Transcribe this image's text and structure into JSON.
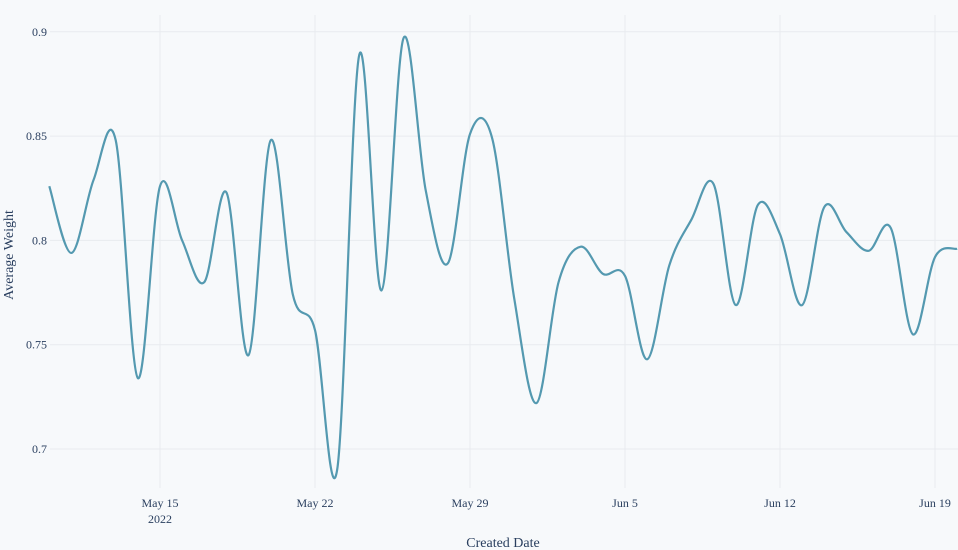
{
  "chart_data": {
    "type": "line",
    "title": "",
    "xlabel": "Created Date",
    "ylabel": "Average Weight",
    "ylim": [
      0.68,
      0.905
    ],
    "grid": true,
    "legend": "none",
    "line_color": "#5499b0",
    "background": "#f7f9fb",
    "x_ticks": [
      {
        "label": "May 15",
        "sub": "2022",
        "date": "2022-05-15"
      },
      {
        "label": "May 22",
        "date": "2022-05-22"
      },
      {
        "label": "May 29",
        "date": "2022-05-29"
      },
      {
        "label": "Jun 5",
        "date": "2022-06-05"
      },
      {
        "label": "Jun 12",
        "date": "2022-06-12"
      },
      {
        "label": "Jun 19",
        "date": "2022-06-19"
      }
    ],
    "y_ticks": [
      "0.7",
      "0.75",
      "0.8",
      "0.85",
      "0.9"
    ],
    "x": [
      "2022-05-10",
      "2022-05-11",
      "2022-05-12",
      "2022-05-13",
      "2022-05-14",
      "2022-05-15",
      "2022-05-16",
      "2022-05-17",
      "2022-05-18",
      "2022-05-19",
      "2022-05-20",
      "2022-05-21",
      "2022-05-22",
      "2022-05-23",
      "2022-05-24",
      "2022-05-25",
      "2022-05-26",
      "2022-05-27",
      "2022-05-28",
      "2022-05-29",
      "2022-05-30",
      "2022-05-31",
      "2022-06-01",
      "2022-06-02",
      "2022-06-03",
      "2022-06-04",
      "2022-06-05",
      "2022-06-06",
      "2022-06-07",
      "2022-06-08",
      "2022-06-09",
      "2022-06-10",
      "2022-06-11",
      "2022-06-12",
      "2022-06-13",
      "2022-06-14",
      "2022-06-15",
      "2022-06-16",
      "2022-06-17",
      "2022-06-18",
      "2022-06-19",
      "2022-06-20"
    ],
    "series": [
      {
        "name": "Average Weight",
        "values": [
          0.826,
          0.794,
          0.829,
          0.848,
          0.734,
          0.826,
          0.8,
          0.78,
          0.823,
          0.745,
          0.848,
          0.774,
          0.757,
          0.69,
          0.889,
          0.776,
          0.897,
          0.824,
          0.789,
          0.851,
          0.849,
          0.772,
          0.722,
          0.78,
          0.797,
          0.784,
          0.783,
          0.743,
          0.788,
          0.81,
          0.827,
          0.769,
          0.817,
          0.803,
          0.769,
          0.816,
          0.804,
          0.795,
          0.806,
          0.755,
          0.792,
          0.796
        ]
      }
    ]
  }
}
